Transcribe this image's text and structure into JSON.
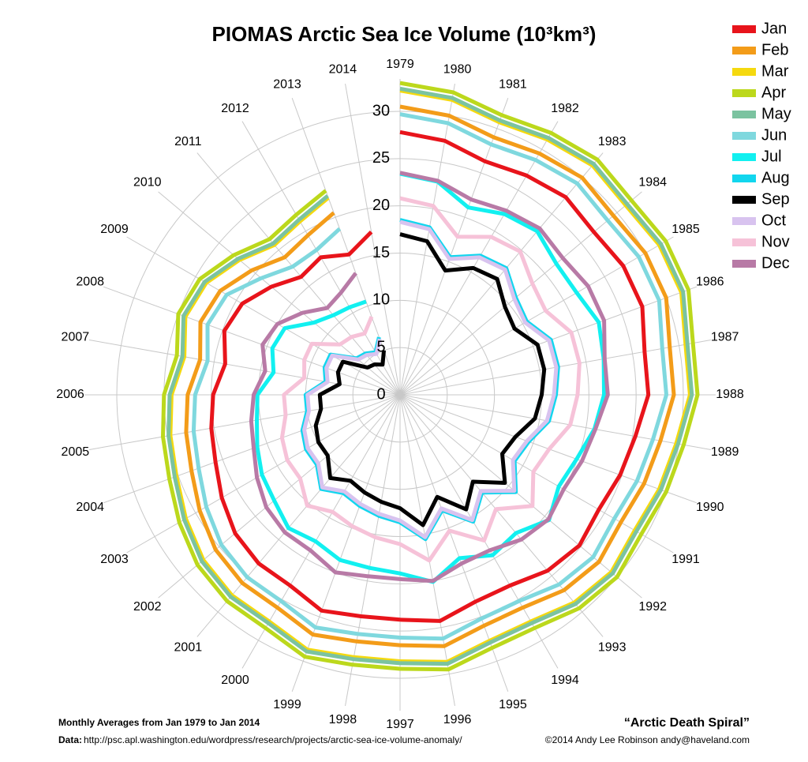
{
  "chart_data": {
    "type": "polar-line",
    "title": "PIOMAS Arctic Sea Ice Volume (10³km³)",
    "footnote": "Monthly Averages from Jan 1979 to Jan 2014",
    "source_label": "Data:",
    "source_url": "http://psc.apl.washington.edu/wordpress/research/projects/arctic-sea-ice-volume-anomaly/",
    "tagline": "“Arctic Death Spiral”",
    "credit": "©2014 Andy Lee Robinson andy@haveland.com",
    "categories": [
      "1979",
      "1980",
      "1981",
      "1982",
      "1983",
      "1984",
      "1985",
      "1986",
      "1987",
      "1988",
      "1989",
      "1990",
      "1991",
      "1992",
      "1993",
      "1994",
      "1995",
      "1996",
      "1997",
      "1998",
      "1999",
      "2000",
      "2001",
      "2002",
      "2003",
      "2004",
      "2005",
      "2006",
      "2007",
      "2008",
      "2009",
      "2010",
      "2011",
      "2012",
      "2013",
      "2014"
    ],
    "rlim": [
      0,
      30
    ],
    "rticks": [
      0,
      5,
      10,
      15,
      20,
      25,
      30
    ],
    "grid": true,
    "legend": "top-right",
    "series": [
      {
        "name": "Jan",
        "color": "#e8141b",
        "values": [
          27.8,
          27.3,
          26.3,
          26.8,
          27.3,
          26.8,
          27.3,
          27.3,
          26.3,
          26.3,
          25.3,
          24.8,
          24.3,
          24.8,
          24.3,
          23.3,
          23.3,
          24.3,
          23.8,
          23.8,
          24.3,
          23.3,
          23.3,
          22.8,
          21.8,
          20.8,
          20.3,
          19.8,
          18.8,
          19.8,
          19.3,
          17.8,
          16.3,
          16.8,
          15.8,
          17.5
        ]
      },
      {
        "name": "Feb",
        "color": "#f39c19",
        "values": [
          30.5,
          30.0,
          29.0,
          29.5,
          30.0,
          29.5,
          30.0,
          30.0,
          29.0,
          29.0,
          28.0,
          27.5,
          27.0,
          27.5,
          27.0,
          26.0,
          26.0,
          27.0,
          26.5,
          26.5,
          27.0,
          26.0,
          26.0,
          25.5,
          24.5,
          23.5,
          23.0,
          22.5,
          21.5,
          22.5,
          22.0,
          20.5,
          19.0,
          19.5,
          20.5,
          null
        ]
      },
      {
        "name": "Mar",
        "color": "#f5d90f",
        "values": [
          32.2,
          31.7,
          30.7,
          31.2,
          31.7,
          31.2,
          31.7,
          31.7,
          30.7,
          30.7,
          29.7,
          29.2,
          28.7,
          29.2,
          28.7,
          27.7,
          27.7,
          28.7,
          28.2,
          28.2,
          28.7,
          27.7,
          27.7,
          27.2,
          26.2,
          25.2,
          24.7,
          24.2,
          23.2,
          24.2,
          23.7,
          22.2,
          20.7,
          21.2,
          22.2,
          null
        ]
      },
      {
        "name": "Apr",
        "color": "#bcd81c",
        "values": [
          33.0,
          32.5,
          31.5,
          32.0,
          32.5,
          32.0,
          32.5,
          32.5,
          31.5,
          31.5,
          30.5,
          30.0,
          29.5,
          30.0,
          29.5,
          28.5,
          28.5,
          29.5,
          29.0,
          29.0,
          29.5,
          28.5,
          28.5,
          28.0,
          27.0,
          26.0,
          25.5,
          25.0,
          24.0,
          25.0,
          24.5,
          23.0,
          21.5,
          22.0,
          23.0,
          null
        ]
      },
      {
        "name": "May",
        "color": "#7bc3a0",
        "values": [
          32.4,
          31.9,
          30.9,
          31.4,
          31.9,
          31.4,
          31.9,
          31.9,
          30.9,
          30.9,
          29.9,
          29.4,
          28.9,
          29.4,
          28.9,
          27.9,
          27.9,
          28.9,
          28.4,
          28.4,
          28.9,
          27.9,
          27.9,
          27.4,
          26.4,
          25.4,
          24.9,
          24.4,
          23.4,
          24.4,
          23.9,
          22.4,
          20.9,
          21.4,
          22.4,
          null
        ]
      },
      {
        "name": "Jun",
        "color": "#7fd8de",
        "values": [
          29.7,
          29.2,
          28.2,
          28.7,
          29.2,
          28.7,
          29.2,
          29.2,
          28.2,
          28.2,
          27.2,
          26.7,
          26.2,
          26.7,
          26.2,
          25.2,
          25.2,
          26.2,
          25.7,
          25.7,
          26.2,
          25.2,
          25.2,
          24.7,
          23.7,
          22.7,
          22.2,
          21.7,
          20.7,
          21.7,
          21.2,
          19.2,
          17.7,
          17.7,
          18.7,
          null
        ]
      },
      {
        "name": "Jul",
        "color": "#12f0f0",
        "values": [
          23.4,
          22.9,
          21.1,
          22.1,
          22.6,
          21.6,
          21.6,
          22.4,
          21.9,
          21.6,
          20.9,
          19.9,
          19.4,
          20.6,
          19.1,
          19.6,
          18.4,
          20.1,
          18.9,
          18.6,
          18.6,
          17.9,
          18.4,
          17.4,
          16.9,
          16.1,
          15.4,
          15.1,
          13.6,
          14.4,
          14.1,
          11.9,
          11.0,
          10.7,
          10.5,
          null
        ]
      },
      {
        "name": "Aug",
        "color": "#12d6ee",
        "values": [
          18.5,
          18.0,
          15.5,
          17.0,
          17.5,
          16.0,
          15.5,
          17.0,
          17.0,
          16.5,
          16.0,
          14.5,
          14.0,
          16.0,
          13.5,
          15.5,
          13.0,
          15.5,
          13.5,
          13.0,
          12.5,
          12.0,
          13.0,
          11.5,
          11.5,
          11.0,
          10.0,
          10.0,
          8.0,
          8.5,
          8.5,
          6.0,
          5.7,
          5.2,
          6.5,
          null
        ]
      },
      {
        "name": "Sep",
        "color": "#000000",
        "values": [
          17.0,
          16.5,
          14.0,
          15.5,
          16.0,
          14.5,
          14.0,
          15.5,
          15.5,
          15.0,
          14.5,
          13.0,
          12.5,
          14.5,
          12.0,
          14.0,
          11.5,
          14.0,
          12.0,
          11.5,
          11.0,
          10.5,
          11.5,
          10.0,
          10.0,
          9.5,
          8.5,
          8.5,
          6.5,
          7.0,
          7.0,
          4.5,
          4.2,
          3.7,
          5.0,
          null
        ]
      },
      {
        "name": "Oct",
        "color": "#d8c3ef",
        "values": [
          18.3,
          17.8,
          15.3,
          16.8,
          17.3,
          15.8,
          15.3,
          16.8,
          16.8,
          16.3,
          15.8,
          14.3,
          13.8,
          15.8,
          13.3,
          15.3,
          12.8,
          15.3,
          13.3,
          12.8,
          12.3,
          11.8,
          12.8,
          11.3,
          11.3,
          10.8,
          9.8,
          9.8,
          7.8,
          8.3,
          8.3,
          5.8,
          5.5,
          5.0,
          6.3,
          null
        ]
      },
      {
        "name": "Nov",
        "color": "#f6c2d8",
        "values": [
          20.8,
          20.3,
          17.8,
          19.3,
          19.8,
          18.3,
          17.8,
          19.3,
          19.3,
          18.8,
          18.3,
          16.8,
          16.3,
          18.3,
          15.8,
          17.8,
          15.3,
          17.8,
          15.8,
          15.3,
          14.8,
          14.3,
          15.3,
          13.8,
          13.8,
          13.3,
          12.3,
          12.3,
          10.3,
          10.8,
          10.8,
          8.3,
          8.0,
          7.5,
          8.8,
          null
        ]
      },
      {
        "name": "Dec",
        "color": "#b87aa6",
        "values": [
          23.5,
          23.0,
          22.0,
          22.5,
          23.0,
          22.5,
          23.0,
          23.0,
          22.0,
          22.0,
          21.0,
          20.5,
          20.0,
          20.5,
          20.0,
          19.0,
          19.0,
          20.0,
          19.5,
          19.5,
          20.0,
          19.0,
          19.0,
          18.5,
          17.5,
          16.5,
          16.0,
          15.5,
          14.5,
          15.5,
          15.0,
          13.5,
          12.0,
          12.5,
          13.7,
          null
        ]
      }
    ]
  }
}
